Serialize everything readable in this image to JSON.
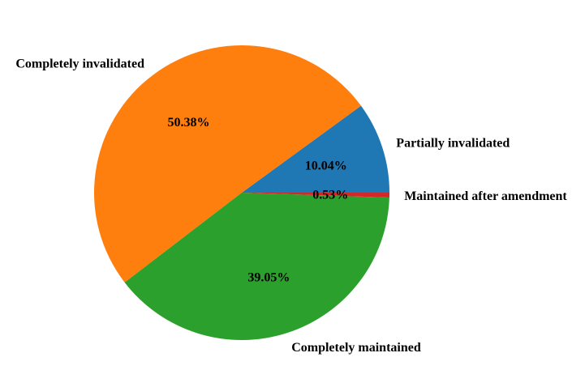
{
  "figure": {
    "background": "#ffffff"
  },
  "chart_data": {
    "type": "pie",
    "title": "",
    "legend": "none",
    "start_angle_deg": 0,
    "direction": "counterclockwise",
    "pct_label_distance": 0.6,
    "category_label_distance": 1.1,
    "text_color": "#000000",
    "slices": [
      {
        "id": "partially-invalidated",
        "label": "Partially invalidated",
        "value": 10.04,
        "pct_label": "10.04%",
        "color": "#1f77b4"
      },
      {
        "id": "completely-invalidated",
        "label": "Completely invalidated",
        "value": 50.38,
        "pct_label": "50.38%",
        "color": "#ff7f0e"
      },
      {
        "id": "completely-maintained",
        "label": "Completely maintained",
        "value": 39.05,
        "pct_label": "39.05%",
        "color": "#2ca02c"
      },
      {
        "id": "maintained-after-amendment",
        "label": "Maintained after amendment",
        "value": 0.53,
        "pct_label": "0.53%",
        "color": "#d62728"
      }
    ]
  }
}
